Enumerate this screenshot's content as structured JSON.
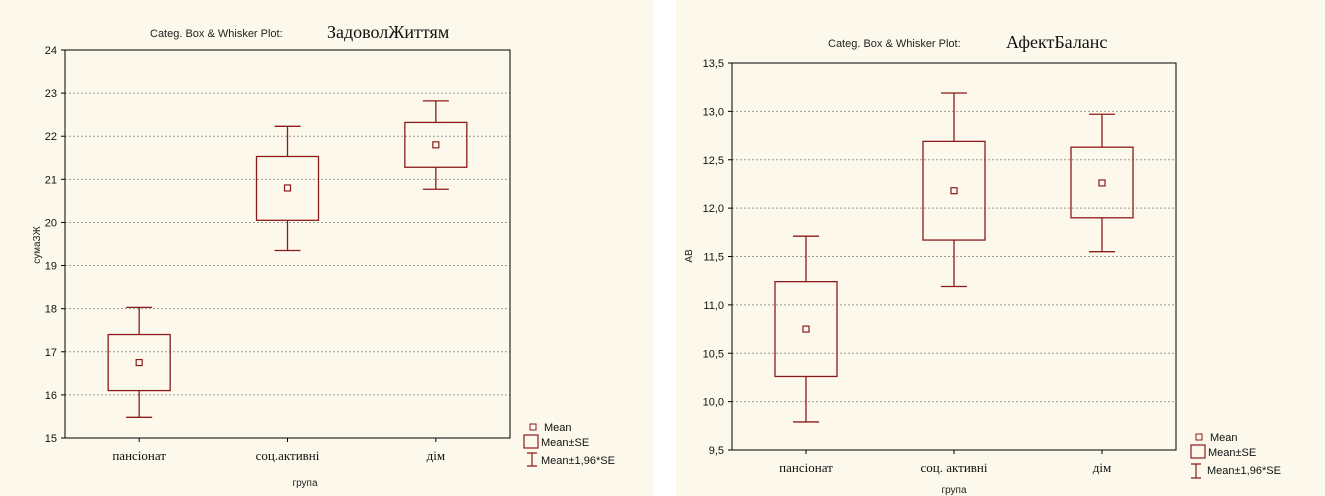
{
  "legend": {
    "mean": "Mean",
    "se": "Mean±SE",
    "ci": "Mean±1,96*SE"
  },
  "colors": {
    "box": "#8b1a1a",
    "background": "#fcf9ec",
    "grid": "#9a9a9a"
  },
  "chart_data": [
    {
      "type": "box",
      "title_prefix": "Categ. Box & Whisker Plot:",
      "title_var": "ЗадоволЖиттям",
      "xlabel": "група",
      "ylabel": "сумаЗЖ",
      "ylim": [
        15,
        24
      ],
      "yticks": [
        "15",
        "16",
        "17",
        "18",
        "19",
        "20",
        "21",
        "22",
        "23",
        "24"
      ],
      "grid": true,
      "legend_position": "bottom-right",
      "categories": [
        "пансіонат",
        "соц.активні",
        "дім"
      ],
      "mean": [
        16.75,
        20.8,
        21.8
      ],
      "se_low": [
        16.1,
        20.05,
        21.28
      ],
      "se_high": [
        17.4,
        21.53,
        22.32
      ],
      "ci_low": [
        15.48,
        19.35,
        20.77
      ],
      "ci_high": [
        18.03,
        22.23,
        22.82
      ]
    },
    {
      "type": "box",
      "title_prefix": "Categ. Box & Whisker Plot:",
      "title_var": "АфектБаланс",
      "xlabel": "група",
      "ylabel": "АВ",
      "ylim": [
        9.5,
        13.5
      ],
      "yticks": [
        "9,5",
        "10,0",
        "10,5",
        "11,0",
        "11,5",
        "12,0",
        "12,5",
        "13,0",
        "13,5"
      ],
      "grid": true,
      "legend_position": "bottom-right",
      "categories": [
        "пансіонат",
        "соц. активні",
        "дім"
      ],
      "mean": [
        10.75,
        12.18,
        12.26
      ],
      "se_low": [
        10.26,
        11.67,
        11.9
      ],
      "se_high": [
        11.24,
        12.69,
        12.63
      ],
      "ci_low": [
        9.79,
        11.19,
        11.55
      ],
      "ci_high": [
        11.71,
        13.19,
        12.97
      ]
    }
  ]
}
